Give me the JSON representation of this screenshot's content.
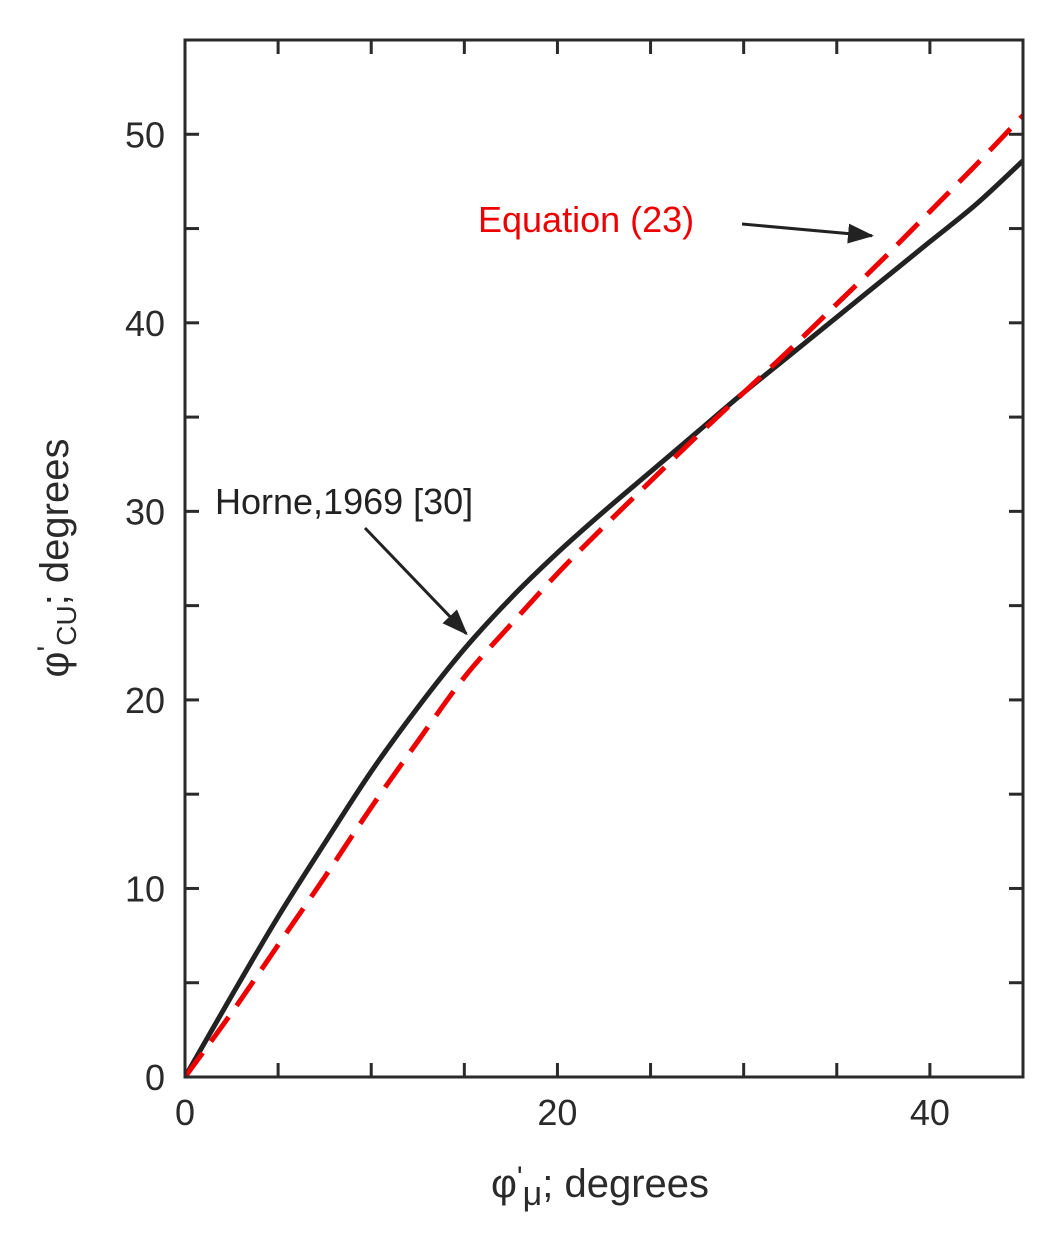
{
  "chart_data": {
    "type": "line",
    "title": "",
    "xlabel": {
      "symbol": "φ",
      "prime": "'",
      "subscript": "μ",
      "suffix": "; degrees"
    },
    "ylabel": {
      "symbol": "φ",
      "prime": "'",
      "subscript": "CU",
      "suffix": "; degrees"
    },
    "xlim": [
      0,
      45
    ],
    "ylim": [
      0,
      55
    ],
    "xticks_major": [
      0,
      20,
      40
    ],
    "xticks_minor": [
      5,
      10,
      15,
      25,
      30,
      35
    ],
    "yticks_major": [
      0,
      10,
      20,
      30,
      40,
      50
    ],
    "yticks_minor": [
      5,
      15,
      25,
      35,
      45
    ],
    "grid": false,
    "series": [
      {
        "name": "Horne,1969 [30]",
        "color": "#222222",
        "style": "solid",
        "x": [
          0,
          2.5,
          5,
          7.5,
          10,
          12.5,
          15,
          17.5,
          20,
          22.5,
          25,
          27.5,
          30,
          32.5,
          35,
          37.5,
          40,
          42.5,
          45
        ],
        "y": [
          0,
          4.3,
          8.5,
          12.4,
          16.2,
          19.6,
          22.7,
          25.4,
          27.8,
          30.0,
          32.1,
          34.2,
          36.3,
          38.3,
          40.3,
          42.3,
          44.3,
          46.3,
          48.6
        ]
      },
      {
        "name": "Equation (23)",
        "color": "#ee0000",
        "style": "dashed",
        "x": [
          0,
          2.5,
          5,
          7.5,
          10,
          12.5,
          15,
          17.5,
          20,
          22.5,
          25,
          27.5,
          30,
          32.5,
          35,
          37.5,
          40,
          42.5,
          45
        ],
        "y": [
          0,
          3.4,
          7.0,
          10.6,
          14.3,
          17.8,
          21.2,
          24.0,
          26.7,
          29.2,
          31.6,
          34.0,
          36.3,
          38.6,
          41.0,
          43.4,
          45.9,
          48.4,
          51.0
        ]
      }
    ],
    "annotations": [
      {
        "text": "Horne,1969 [30]",
        "color": "#222222",
        "points_to_series": 0,
        "target_x": 15,
        "target_y": 23.3
      },
      {
        "text": "Equation (23)",
        "color": "#ee0000",
        "points_to_series": 0,
        "target_x": 37,
        "target_y": 44.3
      }
    ]
  }
}
